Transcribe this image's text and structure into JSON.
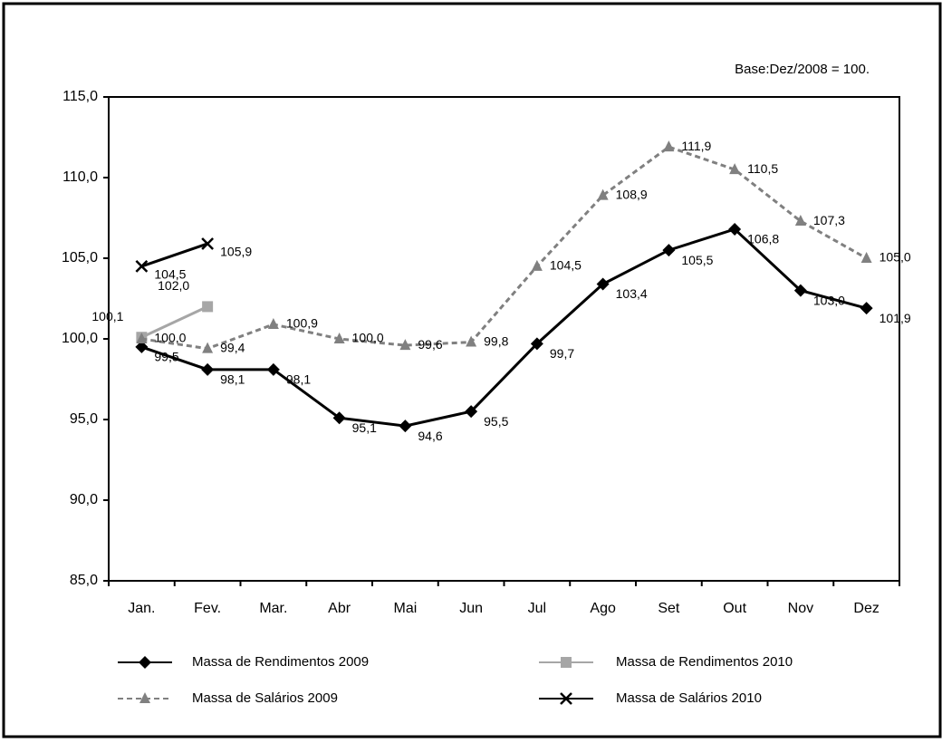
{
  "chart_data": {
    "type": "line",
    "annotation": "Base:Dez/2008 = 100.",
    "categories": [
      "Jan.",
      "Fev.",
      "Mar.",
      "Abr",
      "Mai",
      "Jun",
      "Jul",
      "Ago",
      "Set",
      "Out",
      "Nov",
      "Dez"
    ],
    "ylim": [
      85,
      115
    ],
    "yticks": [
      {
        "value": 85,
        "label": "85,0"
      },
      {
        "value": 90,
        "label": "90,0"
      },
      {
        "value": 95,
        "label": "95,0"
      },
      {
        "value": 100,
        "label": "100,0"
      },
      {
        "value": 105,
        "label": "105,0"
      },
      {
        "value": 110,
        "label": "110,0"
      },
      {
        "value": 115,
        "label": "115,0"
      }
    ],
    "series": [
      {
        "name": "Massa de Rendimentos 2009",
        "color": "#000000",
        "marker": "diamond",
        "dash": false,
        "values": [
          99.5,
          98.1,
          98.1,
          95.1,
          94.6,
          95.5,
          99.7,
          103.4,
          105.5,
          106.8,
          103.0,
          101.9
        ],
        "value_labels": [
          "99,5",
          "98,1",
          "98,1",
          "95,1",
          "94,6",
          "95,5",
          "99,7",
          "103,4",
          "105,5",
          "106,8",
          "103,0",
          "101,9"
        ]
      },
      {
        "name": "Massa de Rendimentos 2010",
        "color": "#a6a6a6",
        "marker": "square",
        "dash": false,
        "values": [
          100.1,
          102.0,
          null,
          null,
          null,
          null,
          null,
          null,
          null,
          null,
          null,
          null
        ],
        "value_labels": [
          "100,1",
          "102,0",
          null,
          null,
          null,
          null,
          null,
          null,
          null,
          null,
          null,
          null
        ]
      },
      {
        "name": "Massa de Salários 2009",
        "color": "#808080",
        "marker": "triangle",
        "dash": true,
        "values": [
          100.0,
          99.4,
          100.9,
          100.0,
          99.6,
          99.8,
          104.5,
          108.9,
          111.9,
          110.5,
          107.3,
          105.0
        ],
        "value_labels": [
          "100,0",
          "99,4",
          "100,9",
          "100,0",
          "99,6",
          "99,8",
          "104,5",
          "108,9",
          "111,9",
          "110,5",
          "107,3",
          "105,0"
        ]
      },
      {
        "name": "Massa de Salários 2010",
        "color": "#000000",
        "marker": "x",
        "dash": false,
        "values": [
          104.5,
          105.9,
          null,
          null,
          null,
          null,
          null,
          null,
          null,
          null,
          null,
          null
        ],
        "value_labels": [
          "104,5",
          "105,9",
          null,
          null,
          null,
          null,
          null,
          null,
          null,
          null,
          null,
          null
        ]
      }
    ]
  }
}
